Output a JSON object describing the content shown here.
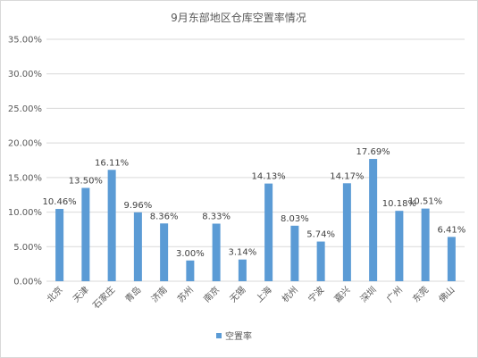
{
  "chart_data": {
    "type": "bar",
    "title": "9月东部地区仓库空置率情况",
    "categories": [
      "北京",
      "天津",
      "石家庄",
      "青岛",
      "济南",
      "苏州",
      "南京",
      "无锡",
      "上海",
      "杭州",
      "宁波",
      "嘉兴",
      "深圳",
      "广州",
      "东莞",
      "佛山"
    ],
    "series": [
      {
        "name": "空置率",
        "values": [
          10.46,
          13.5,
          16.11,
          9.96,
          8.36,
          3.0,
          8.33,
          3.14,
          14.13,
          8.03,
          5.74,
          14.17,
          17.69,
          10.18,
          10.51,
          6.41
        ],
        "labels": [
          "10.46%",
          "13.50%",
          "16.11%",
          "9.96%",
          "8.36%",
          "3.00%",
          "8.33%",
          "3.14%",
          "14.13%",
          "8.03%",
          "5.74%",
          "14.17%",
          "17.69%",
          "10.18%",
          "10.51%",
          "6.41%"
        ]
      }
    ],
    "ylim": [
      0,
      35
    ],
    "yticks": [
      "0.00%",
      "5.00%",
      "10.00%",
      "15.00%",
      "20.00%",
      "25.00%",
      "30.00%",
      "35.00%"
    ],
    "grid": true,
    "legend": "bottom",
    "colors": {
      "bar": "#5b9bd5",
      "grid": "#d9d9d9"
    }
  }
}
